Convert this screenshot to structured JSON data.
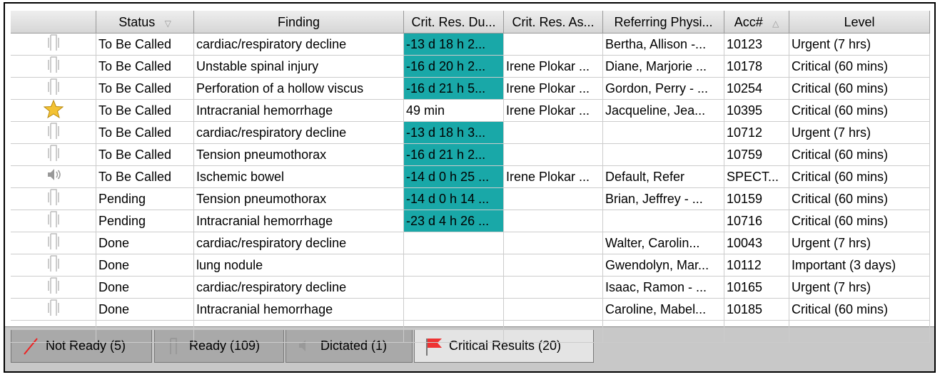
{
  "table": {
    "columns": [
      "Status",
      "Finding",
      "Crit. Res. Du...",
      "Crit. Res. As...",
      "Referring Physi...",
      "Acc#",
      "Level"
    ],
    "rows": [
      [
        "To Be Called",
        "cardiac/respiratory decline",
        "-13 d 18 h 2...",
        null,
        "Bertha, Allison -...",
        "10123",
        "Urgent (7 hrs)"
      ],
      [
        "To Be Called",
        "Unstable spinal injury",
        "-16 d 20 h 2...",
        "Irene Plokar ...",
        "Diane, Marjorie ...",
        "10178",
        "Critical (60 mins)"
      ],
      [
        "To Be Called",
        "Perforation of a hollow viscus",
        "-16 d 21 h 5...",
        "Irene Plokar ...",
        "Gordon, Perry - ...",
        "10254",
        "Critical (60 mins)"
      ],
      [
        "To Be Called",
        "Intracranial hemorrhage",
        "49 min",
        "Irene Plokar ...",
        "Jacqueline, Jea...",
        "10395",
        "Critical (60 mins)"
      ],
      [
        "To Be Called",
        "cardiac/respiratory decline",
        "-13 d 18 h 3...",
        null,
        null,
        "10712",
        "Urgent (7 hrs)"
      ],
      [
        "To Be Called",
        "Tension pneumothorax",
        "-16 d 21 h 2...",
        null,
        null,
        "10759",
        "Critical (60 mins)"
      ],
      [
        "To Be Called",
        "Ischemic bowel",
        "-14 d 0 h 25 ...",
        "Irene Plokar ...",
        "Default, Refer",
        "SPECT...",
        "Critical (60 mins)"
      ],
      [
        "Pending",
        "Tension pneumothorax",
        "-14 d 0 h 14 ...",
        null,
        "Brian, Jeffrey - ...",
        "10159",
        "Critical (60 mins)"
      ],
      [
        "Pending",
        "Intracranial hemorrhage",
        "-23 d 4 h 26 ...",
        null,
        null,
        "10716",
        "Critical (60 mins)"
      ],
      [
        "Done",
        "cardiac/respiratory decline",
        null,
        null,
        "Walter, Carolin...",
        "10043",
        "Urgent (7 hrs)"
      ],
      [
        "Done",
        "lung nodule",
        null,
        null,
        "Gwendolyn, Mar...",
        "10112",
        "Important (3 days)"
      ],
      [
        "Done",
        "cardiac/respiratory decline",
        null,
        null,
        "Isaac, Ramon - ...",
        "10165",
        "Urgent (7 hrs)"
      ],
      [
        "Done",
        "Intracranial hemorrhage",
        null,
        null,
        "Caroline, Mabel...",
        "10185",
        "Critical (60 mins)"
      ]
    ]
  },
  "tabs": [
    "Not Ready (5)",
    "Ready (109)",
    "Dictated (1)",
    "Critical Results (20)"
  ]
}
